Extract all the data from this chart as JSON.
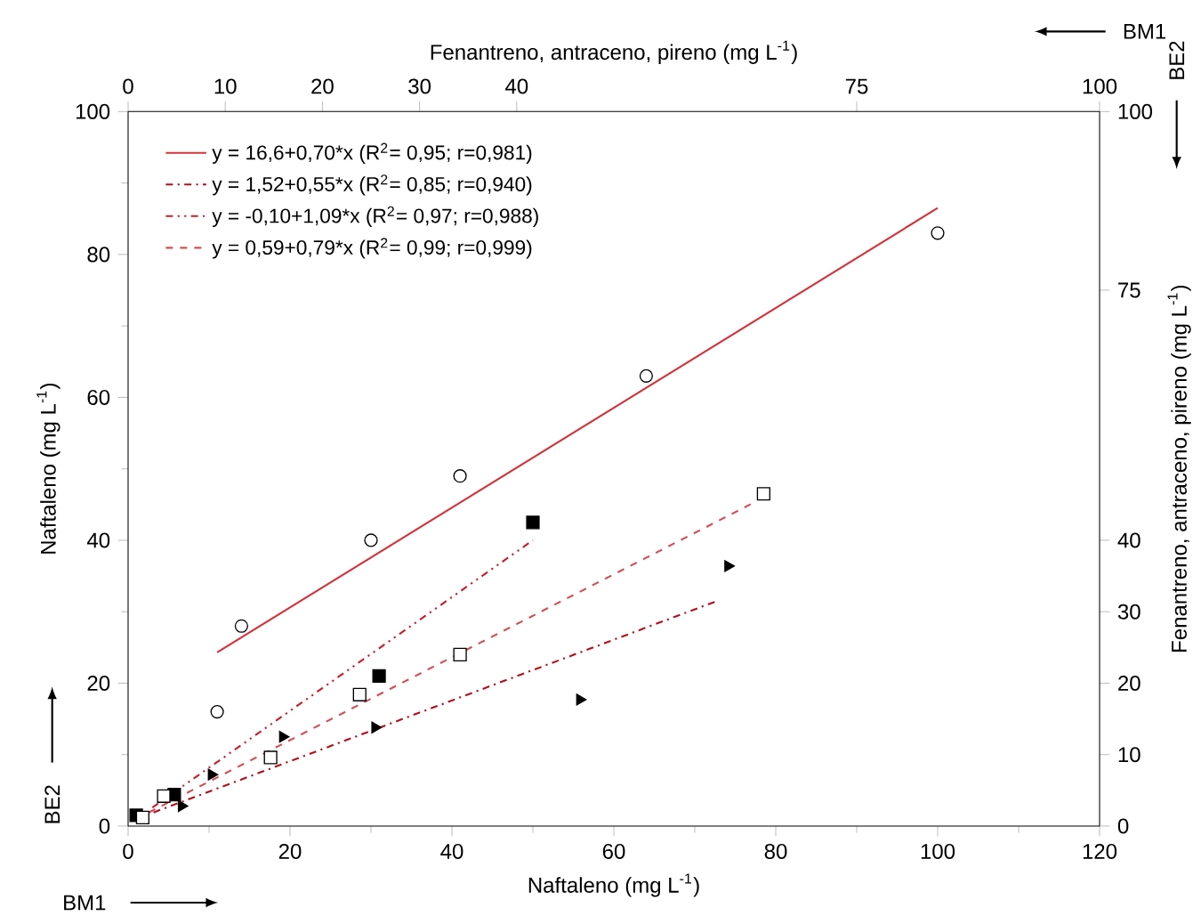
{
  "chart_data": {
    "type": "scatter",
    "xlabel": "Naftaleno (mg L$^{-1}$)",
    "ylabel": "Naftaleno (mg L$^{-1}$)",
    "x2label": "Fenantreno, antraceno, pireno (mg L$^{-1}$)",
    "y2label": "Fenantreno, antraceno, pireno (mg L$^{-1}$)",
    "xlim": [
      0,
      120
    ],
    "xticks": [
      0,
      20,
      40,
      60,
      80,
      100,
      120
    ],
    "ylim": [
      0,
      100
    ],
    "yticks": [
      0,
      20,
      40,
      60,
      80,
      100
    ],
    "x2lim": [
      0,
      100
    ],
    "x2ticks": [
      0,
      10,
      20,
      30,
      40,
      75,
      100
    ],
    "y2lim": [
      0,
      100
    ],
    "y2ticks": [
      0,
      10,
      20,
      30,
      40,
      75,
      100
    ],
    "legend": "top left",
    "annotations": [
      "BM1",
      "BE2",
      "BM1",
      "BE2"
    ],
    "series": [
      {
        "marker": "circle",
        "color": "#ffffff",
        "x": [
          11,
          14,
          30,
          41,
          64,
          100
        ],
        "values": [
          16,
          28,
          40,
          49,
          63,
          83
        ]
      },
      {
        "marker": "square",
        "color": "#000000",
        "x": [
          1,
          5.7,
          31,
          50
        ],
        "values": [
          1.5,
          4.4,
          21,
          42.5
        ]
      },
      {
        "marker": "square",
        "color": "#ffffff",
        "x": [
          1.8,
          4.4,
          17.6,
          28.6,
          41,
          78.5
        ],
        "values": [
          1.2,
          4.2,
          9.6,
          18.4,
          24,
          46.5
        ]
      },
      {
        "marker": "triangle",
        "color": "#000000",
        "x": [
          6.6,
          10.3,
          19.1,
          30.5,
          55.8,
          74.1
        ],
        "values": [
          2.8,
          7.2,
          12.5,
          13.8,
          17.7,
          36.4
        ]
      },
      {
        "type": "line",
        "name": "y = 16,6+0,70*x (R$^{2}$= 0,95; r=0,981)",
        "line_style": "solid",
        "color": "#d0343c",
        "x": [
          11,
          100
        ],
        "values": [
          24.3,
          86.5
        ]
      },
      {
        "type": "line",
        "name": "y = 1,52+0,55*x (R$^{2}$= 0,85; r=0,940)",
        "line_style": "dashdot",
        "color": "#b0101c",
        "x": [
          1,
          72.5
        ],
        "values": [
          1,
          31.4
        ]
      },
      {
        "type": "line",
        "name": "y = -0,10+1,09*x (R$^{2}$= 0,97; r=0,988)",
        "line_style": "dashdotdot",
        "color": "#c0202c",
        "x": [
          3,
          50
        ],
        "values": [
          2.6,
          40
        ]
      },
      {
        "type": "line",
        "name": "y = 0,59+0,79*x (R$^{2}$= 0,99; r=0,999)",
        "line_style": "dashed",
        "color": "#d05058",
        "x": [
          1,
          77
        ],
        "values": [
          1,
          45.1
        ]
      }
    ]
  }
}
